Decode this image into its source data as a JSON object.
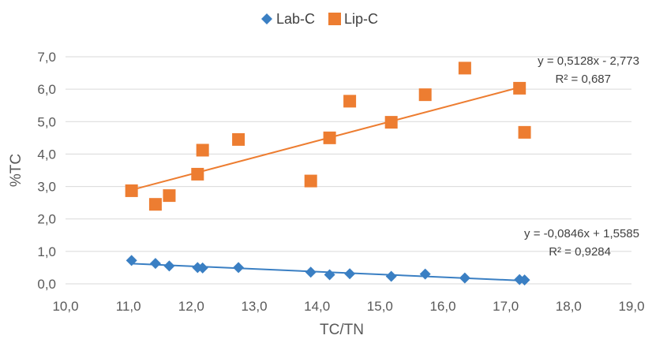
{
  "chart_data": {
    "type": "scatter",
    "xlabel": "TC/TN",
    "ylabel": "%TC",
    "xlim": [
      10.0,
      19.0
    ],
    "ylim": [
      0.0,
      7.0
    ],
    "x_ticks": [
      "10,0",
      "11,0",
      "12,0",
      "13,0",
      "14,0",
      "15,0",
      "16,0",
      "17,0",
      "18,0",
      "19,0"
    ],
    "y_ticks": [
      "0,0",
      "1,0",
      "2,0",
      "3,0",
      "4,0",
      "5,0",
      "6,0",
      "7,0"
    ],
    "grid": "horizontal",
    "legend_position": "top-center",
    "series": [
      {
        "name": "Lab-C",
        "marker": "diamond",
        "color": "#3a7fc3",
        "points": [
          [
            11.05,
            0.72
          ],
          [
            11.43,
            0.63
          ],
          [
            11.65,
            0.55
          ],
          [
            12.1,
            0.5
          ],
          [
            12.18,
            0.49
          ],
          [
            12.75,
            0.5
          ],
          [
            13.9,
            0.36
          ],
          [
            14.2,
            0.28
          ],
          [
            14.52,
            0.31
          ],
          [
            15.18,
            0.23
          ],
          [
            15.72,
            0.3
          ],
          [
            16.35,
            0.18
          ],
          [
            17.22,
            0.13
          ],
          [
            17.3,
            0.12
          ]
        ],
        "trendline": {
          "slope": -0.0846,
          "intercept": 1.5585,
          "x_range": [
            11.05,
            17.3
          ],
          "color": "#3a7fc3"
        },
        "equation": "y = -0,0846x + 1,5585",
        "r2": "R² = 0,9284"
      },
      {
        "name": "Lip-C",
        "marker": "square",
        "color": "#ed7d31",
        "points": [
          [
            11.05,
            2.87
          ],
          [
            11.43,
            2.45
          ],
          [
            11.65,
            2.72
          ],
          [
            12.1,
            3.38
          ],
          [
            12.18,
            4.12
          ],
          [
            12.75,
            4.45
          ],
          [
            13.9,
            3.17
          ],
          [
            14.2,
            4.5
          ],
          [
            14.52,
            5.63
          ],
          [
            15.18,
            4.98
          ],
          [
            15.72,
            5.83
          ],
          [
            16.35,
            6.65
          ],
          [
            17.22,
            6.03
          ],
          [
            17.3,
            4.67
          ]
        ],
        "trendline": {
          "slope": 0.5128,
          "intercept": -2.773,
          "x_range": [
            11.05,
            17.3
          ],
          "color": "#ed7d31"
        },
        "equation": "y = 0,5128x - 2,773",
        "r2": "R² = 0,687"
      }
    ]
  }
}
